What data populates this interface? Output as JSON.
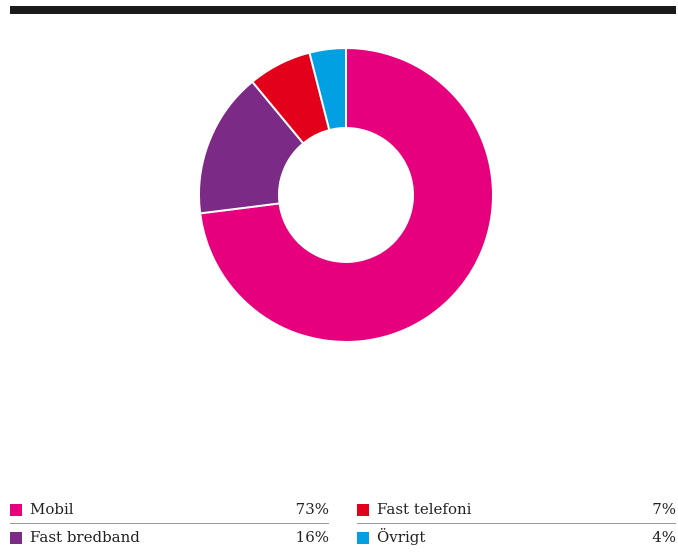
{
  "chart_data": {
    "type": "pie",
    "variant": "donut",
    "categories": [
      "Mobil",
      "Fast bredband",
      "Fast telefoni",
      "Övrigt"
    ],
    "values": [
      73,
      16,
      7,
      4
    ],
    "value_labels": [
      "73%",
      "16%",
      "7%",
      "4%"
    ],
    "unit": "%",
    "colors": [
      "#e6007e",
      "#7b2a85",
      "#e2001a",
      "#00a0e3"
    ],
    "title": "",
    "legend_position": "bottom"
  },
  "colors": {
    "rule": "#1a1a1a",
    "separator": "#9a9a9a"
  }
}
